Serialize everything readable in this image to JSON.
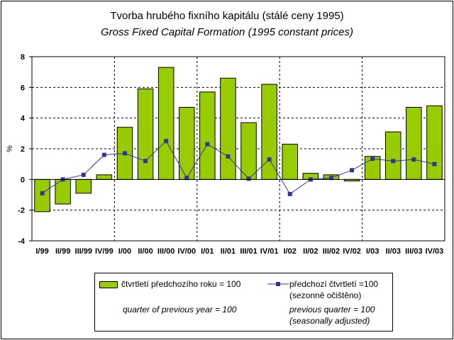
{
  "title": {
    "line1": "Tvorba hrubého fixního kapitálu (stálé ceny 1995)",
    "line2": "Gross Fixed Capital Formation (1995 constant prices)"
  },
  "chart_data": {
    "type": "bar+line",
    "categories": [
      "I/99",
      "II/99",
      "III/99",
      "IV/99",
      "I/00",
      "II/00",
      "III/00",
      "IV/00",
      "I/01",
      "II/01",
      "III/01",
      "IV/01",
      "I/02",
      "II/02",
      "III/02",
      "IV/02",
      "I/03",
      "II/03",
      "III/03",
      "IV/03"
    ],
    "series": [
      {
        "name": "čtvrtletí předchozího roku = 100",
        "type": "bar",
        "color": "#99cc00",
        "values": [
          -2.1,
          -1.6,
          -0.9,
          0.3,
          3.4,
          5.9,
          7.3,
          4.7,
          5.7,
          6.6,
          3.7,
          6.2,
          2.3,
          0.4,
          0.3,
          -0.1,
          1.5,
          3.1,
          4.7,
          4.8
        ]
      },
      {
        "name": "předchozí čtvrtletí =100 (sezonně očištěno)",
        "type": "line",
        "color": "#333399",
        "values": [
          -0.9,
          0.0,
          0.3,
          1.6,
          1.7,
          1.2,
          2.5,
          0.1,
          2.3,
          1.5,
          0.05,
          1.3,
          -0.95,
          0.0,
          0.1,
          0.6,
          1.35,
          1.2,
          1.3,
          1.0
        ]
      }
    ],
    "ylabel": "%",
    "ylim": [
      -4,
      8
    ],
    "yticks": [
      "-4",
      "-2",
      "0",
      "2",
      "4",
      "6",
      "8"
    ],
    "ytick_values": [
      -4,
      -2,
      0,
      2,
      4,
      6,
      8
    ],
    "grid": "dashed horizontal; dashed vertical after each year"
  },
  "legend": {
    "bar_label": "čtvrtletí předchozího roku = 100",
    "bar_label_en": "quarter of previous year = 100",
    "line_label_1": "předchozí čtvrtletí =100",
    "line_label_2": "(sezonně očištěno)",
    "line_label_en_1": "previous quarter = 100",
    "line_label_en_2": "(seasonally adjusted)"
  }
}
